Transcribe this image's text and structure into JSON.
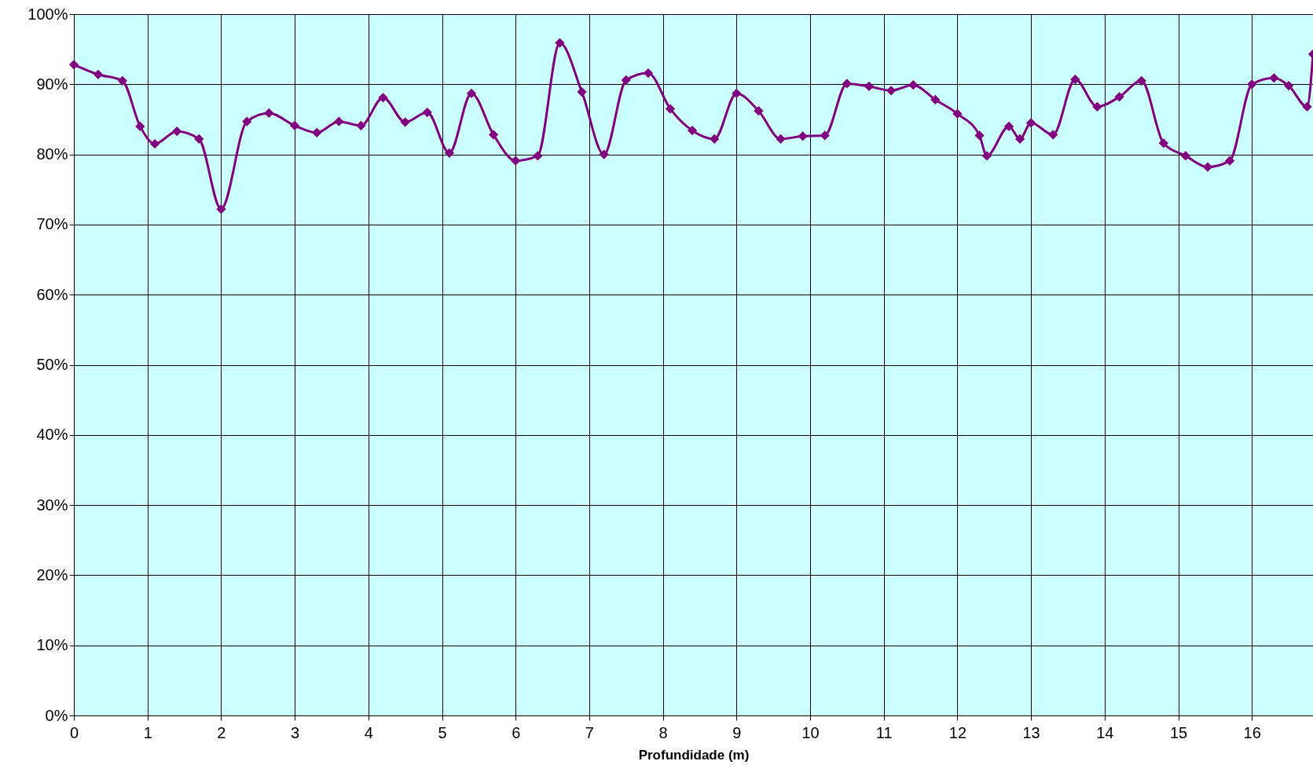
{
  "chart_data": {
    "type": "line",
    "xlabel": "Profundidade (m)",
    "x": [
      0,
      0.33,
      0.66,
      0.9,
      1.1,
      1.4,
      1.7,
      2.0,
      2.35,
      2.65,
      3.0,
      3.3,
      3.6,
      3.9,
      4.2,
      4.5,
      4.8,
      5.1,
      5.4,
      5.7,
      6.0,
      6.3,
      6.6,
      6.9,
      7.2,
      7.5,
      7.8,
      8.1,
      8.4,
      8.7,
      9.0,
      9.3,
      9.6,
      9.9,
      10.2,
      10.5,
      10.8,
      11.1,
      11.4,
      11.7,
      12.0,
      12.3,
      12.4,
      12.7,
      12.85,
      13.0,
      13.3,
      13.6,
      13.9,
      14.2,
      14.5,
      14.8,
      15.1,
      15.4,
      15.7,
      16.0,
      16.3,
      16.5,
      16.75,
      16.83
    ],
    "series": [
      {
        "color": "#800080",
        "values": [
          92.8,
          91.4,
          90.5,
          84.0,
          81.5,
          83.3,
          82.2,
          72.2,
          84.7,
          85.9,
          84.1,
          83.1,
          84.7,
          84.1,
          88.1,
          84.6,
          86.0,
          80.2,
          88.7,
          82.8,
          79.1,
          79.8,
          95.9,
          88.9,
          80.0,
          90.6,
          91.6,
          86.5,
          83.4,
          82.2,
          88.7,
          86.2,
          82.2,
          82.6,
          82.7,
          90.1,
          89.7,
          89.1,
          89.9,
          87.8,
          85.8,
          82.7,
          79.8,
          84.0,
          82.2,
          84.5,
          82.8,
          90.7,
          86.8,
          88.2,
          90.5,
          81.6,
          79.8,
          78.2,
          79.1,
          90.0,
          90.9,
          89.8,
          86.8,
          94.3
        ]
      }
    ],
    "xlim": [
      0,
      16.83
    ],
    "xticks": [
      0,
      1,
      2,
      3,
      4,
      5,
      6,
      7,
      8,
      9,
      10,
      11,
      12,
      13,
      14,
      15,
      16
    ],
    "ylim": [
      0,
      100
    ],
    "yticks": [
      {
        "value": 0,
        "label": "0%"
      },
      {
        "value": 10,
        "label": "10%"
      },
      {
        "value": 20,
        "label": "20%"
      },
      {
        "value": 30,
        "label": "30%"
      },
      {
        "value": 40,
        "label": "40%"
      },
      {
        "value": 50,
        "label": "50%"
      },
      {
        "value": 60,
        "label": "60%"
      },
      {
        "value": 70,
        "label": "70%"
      },
      {
        "value": 80,
        "label": "80%"
      },
      {
        "value": 90,
        "label": "90%"
      },
      {
        "value": 100,
        "label": "100%"
      }
    ],
    "grid": true,
    "marker": "diamond",
    "line_style": "solid"
  }
}
